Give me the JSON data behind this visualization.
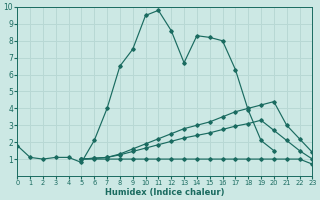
{
  "xlabel": "Humidex (Indice chaleur)",
  "bg_color": "#cce8e4",
  "grid_color": "#b8d8d4",
  "line_color": "#1a6b60",
  "xlim": [
    0,
    23
  ],
  "ylim": [
    0,
    10
  ],
  "xticks": [
    0,
    1,
    2,
    3,
    4,
    5,
    6,
    7,
    8,
    9,
    10,
    11,
    12,
    13,
    14,
    15,
    16,
    17,
    18,
    19,
    20,
    21,
    22,
    23
  ],
  "yticks": [
    1,
    2,
    3,
    4,
    5,
    6,
    7,
    8,
    9,
    10
  ],
  "series": [
    {
      "x": [
        0,
        1,
        2,
        3,
        4,
        5,
        6,
        7,
        8,
        9,
        10,
        11,
        12,
        13,
        14,
        15,
        16,
        17,
        18,
        19,
        20
      ],
      "y": [
        1.8,
        1.1,
        1.0,
        1.1,
        1.1,
        0.8,
        2.1,
        4.0,
        6.5,
        7.5,
        9.5,
        9.8,
        8.6,
        6.7,
        8.3,
        8.2,
        8.0,
        6.3,
        3.9,
        2.1,
        1.5
      ]
    },
    {
      "x": [
        5,
        6,
        7,
        8,
        9,
        10,
        11,
        12,
        13,
        14,
        15,
        16,
        17,
        18,
        19,
        20,
        21,
        22,
        23
      ],
      "y": [
        1.0,
        1.05,
        1.1,
        1.3,
        1.6,
        1.9,
        2.2,
        2.5,
        2.8,
        3.0,
        3.2,
        3.5,
        3.8,
        4.0,
        4.2,
        4.4,
        3.0,
        2.2,
        1.4
      ]
    },
    {
      "x": [
        5,
        6,
        7,
        8,
        9,
        10,
        11,
        12,
        13,
        14,
        15,
        16,
        17,
        18,
        19,
        20,
        21,
        22,
        23
      ],
      "y": [
        1.0,
        1.05,
        1.1,
        1.25,
        1.45,
        1.65,
        1.85,
        2.05,
        2.25,
        2.4,
        2.55,
        2.75,
        2.95,
        3.1,
        3.3,
        2.7,
        2.1,
        1.5,
        1.0
      ]
    },
    {
      "x": [
        5,
        6,
        7,
        8,
        9,
        10,
        11,
        12,
        13,
        14,
        15,
        16,
        17,
        18,
        19,
        20,
        21,
        22,
        23
      ],
      "y": [
        1.0,
        1.0,
        1.0,
        1.0,
        1.0,
        1.0,
        1.0,
        1.0,
        1.0,
        1.0,
        1.0,
        1.0,
        1.0,
        1.0,
        1.0,
        1.0,
        1.0,
        1.0,
        0.7
      ]
    }
  ]
}
